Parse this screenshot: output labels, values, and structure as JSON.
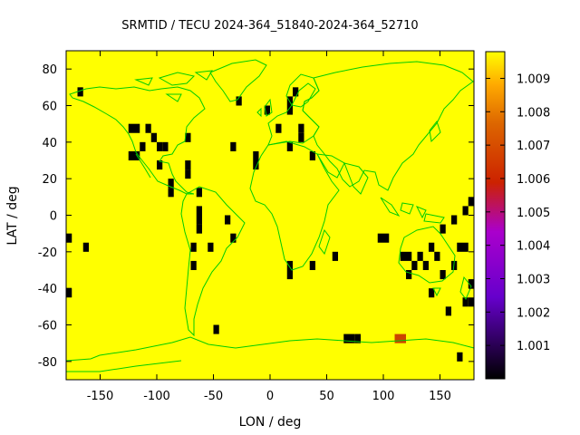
{
  "title": "SRMTID / TECU 2024-364_51840-2024-364_52710",
  "xlabel": "LON / deg",
  "ylabel": "LAT / deg",
  "colors": {
    "background": "#ffff00",
    "coast": "#00cc00",
    "blocked": "#000000",
    "hot": "#cc4400"
  },
  "chart_data": {
    "type": "heatmap",
    "projection": "equirectangular",
    "xlim": [
      -180,
      180
    ],
    "ylim": [
      -90,
      90
    ],
    "cell_deg": 5,
    "xticks": [
      -150,
      -100,
      -50,
      0,
      50,
      100,
      150
    ],
    "yticks": [
      80,
      60,
      40,
      20,
      0,
      -20,
      -40,
      -60,
      -80
    ],
    "colorbar": {
      "range": [
        1.0,
        1.0098
      ],
      "ticks": [
        1.001,
        1.002,
        1.003,
        1.004,
        1.005,
        1.006,
        1.007,
        1.008,
        1.009
      ],
      "palette": "black-purple-red-orange-yellow"
    },
    "background_value": 1.0098,
    "low_cells": [
      [
        -170,
        65
      ],
      [
        -125,
        45
      ],
      [
        -120,
        45
      ],
      [
        -110,
        45
      ],
      [
        -105,
        40
      ],
      [
        -100,
        35
      ],
      [
        -95,
        35
      ],
      [
        -115,
        35
      ],
      [
        -75,
        40
      ],
      [
        -125,
        30
      ],
      [
        -120,
        30
      ],
      [
        -100,
        25
      ],
      [
        -75,
        25
      ],
      [
        -75,
        20
      ],
      [
        -90,
        15
      ],
      [
        -90,
        10
      ],
      [
        -65,
        10
      ],
      [
        -65,
        0
      ],
      [
        -65,
        -5
      ],
      [
        -65,
        -10
      ],
      [
        -40,
        -5
      ],
      [
        -70,
        -20
      ],
      [
        -55,
        -20
      ],
      [
        -70,
        -30
      ],
      [
        -35,
        -15
      ],
      [
        -180,
        -15
      ],
      [
        -165,
        -20
      ],
      [
        -180,
        -45
      ],
      [
        -50,
        -65
      ],
      [
        -35,
        35
      ],
      [
        -15,
        30
      ],
      [
        -15,
        25
      ],
      [
        -30,
        60
      ],
      [
        -5,
        55
      ],
      [
        5,
        45
      ],
      [
        15,
        55
      ],
      [
        15,
        60
      ],
      [
        20,
        65
      ],
      [
        25,
        45
      ],
      [
        25,
        40
      ],
      [
        15,
        35
      ],
      [
        35,
        30
      ],
      [
        15,
        -30
      ],
      [
        15,
        -35
      ],
      [
        35,
        -30
      ],
      [
        55,
        -25
      ],
      [
        95,
        -15
      ],
      [
        100,
        -15
      ],
      [
        65,
        -70
      ],
      [
        70,
        -70
      ],
      [
        75,
        -70
      ],
      [
        115,
        -25
      ],
      [
        120,
        -25
      ],
      [
        125,
        -30
      ],
      [
        120,
        -35
      ],
      [
        130,
        -25
      ],
      [
        135,
        -30
      ],
      [
        145,
        -25
      ],
      [
        140,
        -20
      ],
      [
        150,
        -10
      ],
      [
        160,
        -5
      ],
      [
        170,
        0
      ],
      [
        175,
        5
      ],
      [
        165,
        -20
      ],
      [
        170,
        -20
      ],
      [
        150,
        -35
      ],
      [
        160,
        -30
      ],
      [
        140,
        -45
      ],
      [
        175,
        -40
      ],
      [
        170,
        -50
      ],
      [
        175,
        -50
      ],
      [
        155,
        -55
      ],
      [
        165,
        -80
      ]
    ],
    "mid_cells": [
      {
        "lon": 110,
        "lat": -70,
        "value": 1.0065
      }
    ]
  }
}
